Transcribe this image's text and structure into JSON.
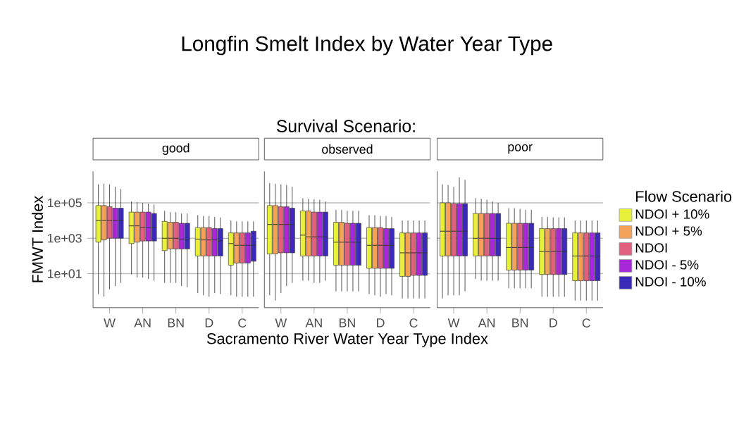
{
  "chart_data": [
    {
      "type": "other",
      "title": "Longfin Smelt Index by Water Year Type",
      "subtitle": "Survival Scenario:"
    },
    {
      "type": "box",
      "title": "good",
      "ylabel": "FMWT Index",
      "categories": [
        "W",
        "AN",
        "BN",
        "D",
        "C"
      ],
      "ylim": [
        0.12,
        6000000
      ],
      "yticks": [
        {
          "value": 10,
          "label": "1e+01"
        },
        {
          "value": 1000,
          "label": "1e+03"
        },
        {
          "value": 100000,
          "label": "1e+05"
        }
      ],
      "log": true,
      "grid": "y",
      "series": [
        {
          "color": "#e8f03a",
          "boxes": [
            {
              "low": 0.7,
              "q1": 600,
              "median": 10000,
              "q3": 70000,
              "high": 1100000
            },
            {
              "low": 9,
              "q1": 500,
              "median": 5000,
              "q3": 30000,
              "high": 120000
            },
            {
              "low": 3,
              "q1": 200,
              "median": 1000,
              "q3": 9000,
              "high": 35000
            },
            {
              "low": 0.8,
              "q1": 100,
              "median": 900,
              "q3": 4000,
              "high": 20000
            },
            {
              "low": 0.6,
              "q1": 30,
              "median": 500,
              "q3": 2000,
              "high": 10000
            }
          ]
        },
        {
          "color": "#f4a15a",
          "boxes": [
            {
              "low": 0.5,
              "q1": 800,
              "median": 10000,
              "q3": 70000,
              "high": 1200000
            },
            {
              "low": 6,
              "q1": 600,
              "median": 5000,
              "q3": 30000,
              "high": 110000
            },
            {
              "low": 3,
              "q1": 250,
              "median": 1000,
              "q3": 8000,
              "high": 30000
            },
            {
              "low": 0.6,
              "q1": 100,
              "median": 800,
              "q3": 4000,
              "high": 18000
            },
            {
              "low": 0.5,
              "q1": 40,
              "median": 400,
              "q3": 2000,
              "high": 9000
            }
          ]
        },
        {
          "color": "#e0607e",
          "boxes": [
            {
              "low": 1.3,
              "q1": 1000,
              "median": 10000,
              "q3": 60000,
              "high": 1100000
            },
            {
              "low": 6,
              "q1": 700,
              "median": 4000,
              "q3": 30000,
              "high": 100000
            },
            {
              "low": 3,
              "q1": 250,
              "median": 1000,
              "q3": 8000,
              "high": 30000
            },
            {
              "low": 0.5,
              "q1": 100,
              "median": 800,
              "q3": 4000,
              "high": 18000
            },
            {
              "low": 0.5,
              "q1": 40,
              "median": 400,
              "q3": 2000,
              "high": 9000
            }
          ]
        },
        {
          "color": "#a828d8",
          "boxes": [
            {
              "low": 2,
              "q1": 1000,
              "median": 10000,
              "q3": 50000,
              "high": 800000
            },
            {
              "low": 5,
              "q1": 700,
              "median": 4000,
              "q3": 30000,
              "high": 90000
            },
            {
              "low": 2,
              "q1": 250,
              "median": 900,
              "q3": 7000,
              "high": 25000
            },
            {
              "low": 0.8,
              "q1": 100,
              "median": 800,
              "q3": 3500,
              "high": 16000
            },
            {
              "low": 0.5,
              "q1": 40,
              "median": 400,
              "q3": 2000,
              "high": 9000
            }
          ]
        },
        {
          "color": "#3b2ab8",
          "boxes": [
            {
              "low": 3,
              "q1": 1000,
              "median": 10000,
              "q3": 50000,
              "high": 600000
            },
            {
              "low": 4,
              "q1": 700,
              "median": 4000,
              "q3": 25000,
              "high": 80000
            },
            {
              "low": 1.7,
              "q1": 250,
              "median": 900,
              "q3": 7000,
              "high": 25000
            },
            {
              "low": 0.7,
              "q1": 100,
              "median": 700,
              "q3": 3500,
              "high": 15000
            },
            {
              "low": 0.5,
              "q1": 50,
              "median": 400,
              "q3": 2500,
              "high": 9000
            }
          ]
        }
      ]
    },
    {
      "type": "box",
      "title": "observed",
      "xlabel": "Sacramento River Water Year Type Index",
      "categories": [
        "W",
        "AN",
        "BN",
        "D",
        "C"
      ],
      "ylim": [
        0.12,
        6000000
      ],
      "log": true,
      "grid": "y",
      "tick_labels": "x",
      "series": [
        {
          "color": "#e8f03a",
          "boxes": [
            {
              "low": 0.6,
              "q1": 130,
              "median": 6000,
              "q3": 70000,
              "high": 1300000
            },
            {
              "low": 4,
              "q1": 100,
              "median": 1500,
              "q3": 35000,
              "high": 180000
            },
            {
              "low": 1,
              "q1": 30,
              "median": 600,
              "q3": 8000,
              "high": 40000
            },
            {
              "low": 0.7,
              "q1": 20,
              "median": 400,
              "q3": 4000,
              "high": 20000
            },
            {
              "low": 0.4,
              "q1": 7,
              "median": 150,
              "q3": 2000,
              "high": 10000
            }
          ]
        },
        {
          "color": "#f4a15a",
          "boxes": [
            {
              "low": 0.3,
              "q1": 130,
              "median": 6000,
              "q3": 70000,
              "high": 1200000
            },
            {
              "low": 4,
              "q1": 100,
              "median": 1200,
              "q3": 35000,
              "high": 170000
            },
            {
              "low": 1,
              "q1": 30,
              "median": 600,
              "q3": 8000,
              "high": 40000
            },
            {
              "low": 0.6,
              "q1": 20,
              "median": 400,
              "q3": 4000,
              "high": 20000
            },
            {
              "low": 0.4,
              "q1": 7,
              "median": 150,
              "q3": 2000,
              "high": 10000
            }
          ]
        },
        {
          "color": "#e0607e",
          "boxes": [
            {
              "low": 0.8,
              "q1": 150,
              "median": 6000,
              "q3": 60000,
              "high": 1100000
            },
            {
              "low": 3,
              "q1": 100,
              "median": 1200,
              "q3": 30000,
              "high": 160000
            },
            {
              "low": 1,
              "q1": 30,
              "median": 600,
              "q3": 7000,
              "high": 35000
            },
            {
              "low": 0.5,
              "q1": 20,
              "median": 400,
              "q3": 4000,
              "high": 18000
            },
            {
              "low": 0.4,
              "q1": 8,
              "median": 150,
              "q3": 2000,
              "high": 10000
            }
          ]
        },
        {
          "color": "#a828d8",
          "boxes": [
            {
              "low": 2,
              "q1": 150,
              "median": 6000,
              "q3": 60000,
              "high": 1000000
            },
            {
              "low": 3,
              "q1": 100,
              "median": 1200,
              "q3": 30000,
              "high": 150000
            },
            {
              "low": 1,
              "q1": 30,
              "median": 600,
              "q3": 7000,
              "high": 35000
            },
            {
              "low": 0.7,
              "q1": 20,
              "median": 400,
              "q3": 3500,
              "high": 18000
            },
            {
              "low": 0.4,
              "q1": 8,
              "median": 150,
              "q3": 2000,
              "high": 10000
            }
          ]
        },
        {
          "color": "#3b2ab8",
          "boxes": [
            {
              "low": 3,
              "q1": 150,
              "median": 6000,
              "q3": 50000,
              "high": 800000
            },
            {
              "low": 4,
              "q1": 100,
              "median": 1200,
              "q3": 30000,
              "high": 120000
            },
            {
              "low": 1,
              "q1": 30,
              "median": 600,
              "q3": 7000,
              "high": 35000
            },
            {
              "low": 0.6,
              "q1": 20,
              "median": 400,
              "q3": 3500,
              "high": 16000
            },
            {
              "low": 0.4,
              "q1": 8,
              "median": 150,
              "q3": 2000,
              "high": 10000
            }
          ]
        }
      ]
    },
    {
      "type": "box",
      "title": "poor",
      "legend_title": "Flow Scenario",
      "legend": "right",
      "categories": [
        "W",
        "AN",
        "BN",
        "D",
        "C"
      ],
      "ylim": [
        0.12,
        6000000
      ],
      "log": true,
      "grid": "y",
      "tick_labels": "x",
      "series": [
        {
          "name": "NDOI + 10%",
          "color": "#e8f03a",
          "boxes": [
            {
              "low": 0.4,
              "q1": 100,
              "median": 2500,
              "q3": 100000,
              "high": 1100000
            },
            {
              "low": 5,
              "q1": 100,
              "median": 1000,
              "q3": 25000,
              "high": 180000
            },
            {
              "low": 1.5,
              "q1": 16,
              "median": 300,
              "q3": 7000,
              "high": 50000
            },
            {
              "low": 0.5,
              "q1": 9,
              "median": 180,
              "q3": 3500,
              "high": 16000
            },
            {
              "low": 0.3,
              "q1": 4,
              "median": 100,
              "q3": 2000,
              "high": 10000
            }
          ]
        },
        {
          "name": "NDOI + 5%",
          "color": "#f4a15a",
          "boxes": [
            {
              "low": 0.6,
              "q1": 100,
              "median": 2500,
              "q3": 100000,
              "high": 1000000
            },
            {
              "low": 4,
              "q1": 100,
              "median": 1000,
              "q3": 25000,
              "high": 170000
            },
            {
              "low": 1.5,
              "q1": 16,
              "median": 300,
              "q3": 7000,
              "high": 50000
            },
            {
              "low": 0.5,
              "q1": 9,
              "median": 180,
              "q3": 3500,
              "high": 16000
            },
            {
              "low": 0.3,
              "q1": 4,
              "median": 100,
              "q3": 2000,
              "high": 10000
            }
          ]
        },
        {
          "name": "NDOI",
          "color": "#e0607e",
          "boxes": [
            {
              "low": 0.6,
              "q1": 100,
              "median": 2500,
              "q3": 90000,
              "high": 800000
            },
            {
              "low": 4,
              "q1": 100,
              "median": 1000,
              "q3": 25000,
              "high": 150000
            },
            {
              "low": 1.5,
              "q1": 16,
              "median": 300,
              "q3": 7000,
              "high": 45000
            },
            {
              "low": 0.5,
              "q1": 9,
              "median": 180,
              "q3": 3500,
              "high": 15000
            },
            {
              "low": 0.3,
              "q1": 4,
              "median": 100,
              "q3": 2000,
              "high": 10000
            }
          ]
        },
        {
          "name": "NDOI - 5%",
          "color": "#a828d8",
          "boxes": [
            {
              "low": 0.6,
              "q1": 100,
              "median": 2500,
              "q3": 90000,
              "high": 2800000
            },
            {
              "low": 4,
              "q1": 100,
              "median": 1000,
              "q3": 25000,
              "high": 120000
            },
            {
              "low": 1.5,
              "q1": 16,
              "median": 300,
              "q3": 7000,
              "high": 40000
            },
            {
              "low": 0.5,
              "q1": 9,
              "median": 180,
              "q3": 3500,
              "high": 15000
            },
            {
              "low": 0.3,
              "q1": 4,
              "median": 100,
              "q3": 2000,
              "high": 10000
            }
          ]
        },
        {
          "name": "NDOI - 10%",
          "color": "#3b2ab8",
          "boxes": [
            {
              "low": 1,
              "q1": 100,
              "median": 2500,
              "q3": 90000,
              "high": 2000000
            },
            {
              "low": 4,
              "q1": 100,
              "median": 1000,
              "q3": 25000,
              "high": 100000
            },
            {
              "low": 1.5,
              "q1": 16,
              "median": 300,
              "q3": 7000,
              "high": 40000
            },
            {
              "low": 0.5,
              "q1": 9,
              "median": 180,
              "q3": 3500,
              "high": 15000
            },
            {
              "low": 0.3,
              "q1": 4,
              "median": 100,
              "q3": 2000,
              "high": 10000
            }
          ]
        }
      ]
    }
  ]
}
